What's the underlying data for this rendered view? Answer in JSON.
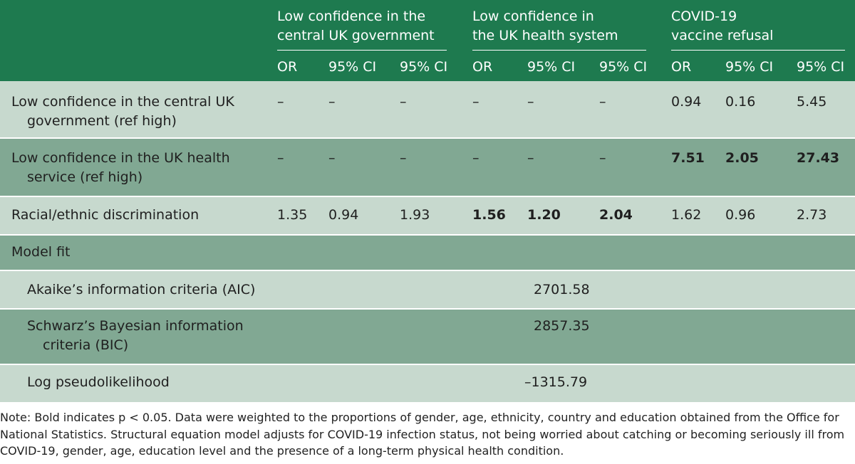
{
  "header": {
    "groups": [
      [
        "Low confidence in the",
        "central UK government"
      ],
      [
        "Low confidence in",
        "the UK health system"
      ],
      [
        "COVID-19",
        "vaccine refusal"
      ]
    ],
    "subheaders": [
      "OR",
      "95% CI",
      "95% CI",
      "OR",
      "95% CI",
      "95% CI",
      "OR",
      "95% CI",
      "95% CI"
    ]
  },
  "rows": [
    {
      "label": [
        "Low confidence in the central UK",
        "government (ref high)"
      ],
      "cells": [
        "–",
        "–",
        "–",
        "–",
        "–",
        "–",
        "0.94",
        "0.16",
        "5.45"
      ],
      "bold": [
        false,
        false,
        false,
        false,
        false,
        false,
        false,
        false,
        false
      ]
    },
    {
      "label": [
        "Low confidence in the UK health",
        "service (ref high)"
      ],
      "cells": [
        "–",
        "–",
        "–",
        "–",
        "–",
        "–",
        "7.51",
        "2.05",
        "27.43"
      ],
      "bold": [
        false,
        false,
        false,
        false,
        false,
        false,
        true,
        true,
        true
      ]
    },
    {
      "label": [
        "Racial/ethnic discrimination"
      ],
      "cells": [
        "1.35",
        "0.94",
        "1.93",
        "1.56",
        "1.20",
        "2.04",
        "1.62",
        "0.96",
        "2.73"
      ],
      "bold": [
        false,
        false,
        false,
        true,
        true,
        true,
        false,
        false,
        false
      ]
    }
  ],
  "model_fit": {
    "title": "Model fit",
    "items": [
      {
        "label": [
          "Akaike’s information criteria (AIC)"
        ],
        "value": "2701.58"
      },
      {
        "label": [
          "Schwarz’s Bayesian information",
          "criteria (BIC)"
        ],
        "value": "2857.35"
      },
      {
        "label": [
          "Log pseudolikelihood"
        ],
        "value": "–1315.79"
      }
    ]
  },
  "note": "Note: Bold indicates p < 0.05. Data were weighted to the proportions of gender, age, ethnicity, country and education obtained from the Office for National Statistics. Structural equation model adjusts for COVID-19 infection status, not being worried about catching or becoming seriously ill from COVID-19, gender, age, education level and the presence of a long-term physical health condition."
}
